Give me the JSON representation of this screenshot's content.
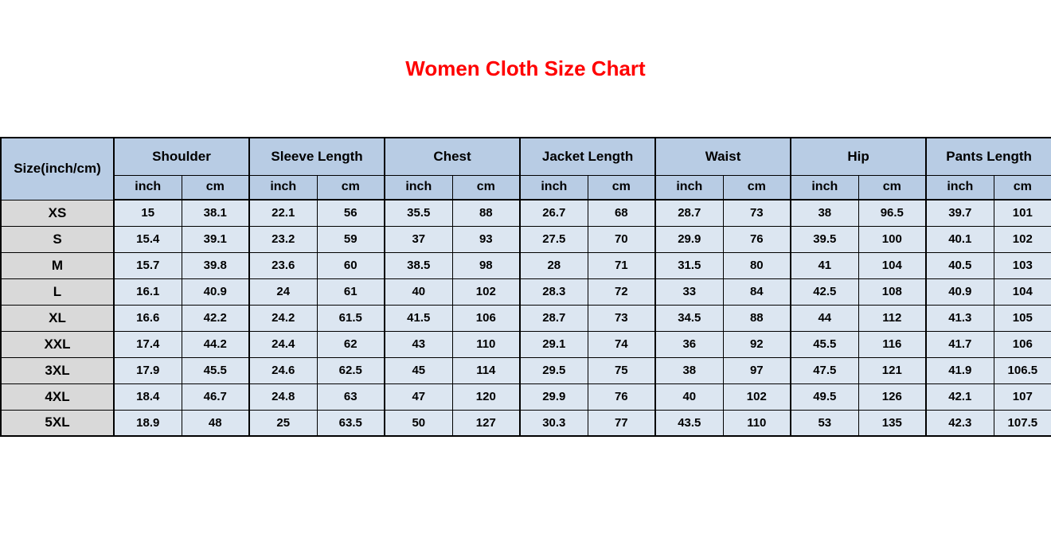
{
  "page": {
    "title": "Women Cloth Size Chart"
  },
  "colors": {
    "title_text": "#ff0000",
    "header_bg": "#b8cce4",
    "data_cell_bg": "#dce6f1",
    "size_col_bg": "#d9d9d9",
    "border": "#000000",
    "cell_text": "#000000",
    "page_bg": "#ffffff"
  },
  "chart_data": {
    "type": "table",
    "title": "Women Cloth Size Chart",
    "corner_label": "Size(inch/cm)",
    "groups": [
      "Shoulder",
      "Sleeve Length",
      "Chest",
      "Jacket Length",
      "Waist",
      "Hip",
      "Pants Length"
    ],
    "unit_headers": [
      "inch",
      "cm"
    ],
    "rows": [
      {
        "size": "XS",
        "values": [
          15,
          38.1,
          22.1,
          56,
          35.5,
          88,
          26.7,
          68,
          28.7,
          73,
          38,
          96.5,
          39.7,
          101
        ]
      },
      {
        "size": "S",
        "values": [
          15.4,
          39.1,
          23.2,
          59,
          37,
          93,
          27.5,
          70,
          29.9,
          76,
          39.5,
          100,
          40.1,
          102
        ]
      },
      {
        "size": "M",
        "values": [
          15.7,
          39.8,
          23.6,
          60,
          38.5,
          98,
          28,
          71,
          31.5,
          80,
          41,
          104,
          40.5,
          103
        ]
      },
      {
        "size": "L",
        "values": [
          16.1,
          40.9,
          24,
          61,
          40,
          102,
          28.3,
          72,
          33,
          84,
          42.5,
          108,
          40.9,
          104
        ]
      },
      {
        "size": "XL",
        "values": [
          16.6,
          42.2,
          24.2,
          61.5,
          41.5,
          106,
          28.7,
          73,
          34.5,
          88,
          44,
          112,
          41.3,
          105
        ]
      },
      {
        "size": "XXL",
        "values": [
          17.4,
          44.2,
          24.4,
          62,
          43,
          110,
          29.1,
          74,
          36,
          92,
          45.5,
          116,
          41.7,
          106
        ]
      },
      {
        "size": "3XL",
        "values": [
          17.9,
          45.5,
          24.6,
          62.5,
          45,
          114,
          29.5,
          75,
          38,
          97,
          47.5,
          121,
          41.9,
          106.5
        ]
      },
      {
        "size": "4XL",
        "values": [
          18.4,
          46.7,
          24.8,
          63,
          47,
          120,
          29.9,
          76,
          40,
          102,
          49.5,
          126,
          42.1,
          107
        ]
      },
      {
        "size": "5XL",
        "values": [
          18.9,
          48,
          25,
          63.5,
          50,
          127,
          30.3,
          77,
          43.5,
          110,
          53,
          135,
          42.3,
          107.5
        ]
      }
    ]
  }
}
